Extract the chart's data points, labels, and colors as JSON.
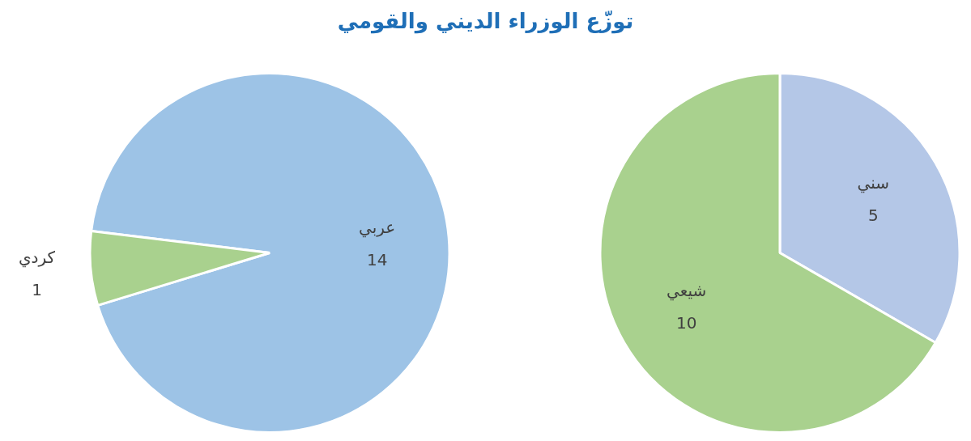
{
  "chart_data": [
    {
      "type": "pie",
      "title": "توزّع الوزراء الديني والقومي",
      "categories": [
        "عربي",
        "كردي"
      ],
      "values": [
        14,
        1
      ],
      "colors": [
        "#9dc3e6",
        "#a9d18e"
      ],
      "data_labels": true
    },
    {
      "type": "pie",
      "categories": [
        "سني",
        "شيعي"
      ],
      "values": [
        5,
        10
      ],
      "colors": [
        "#b4c7e7",
        "#a9d18e"
      ],
      "data_labels": true
    }
  ]
}
